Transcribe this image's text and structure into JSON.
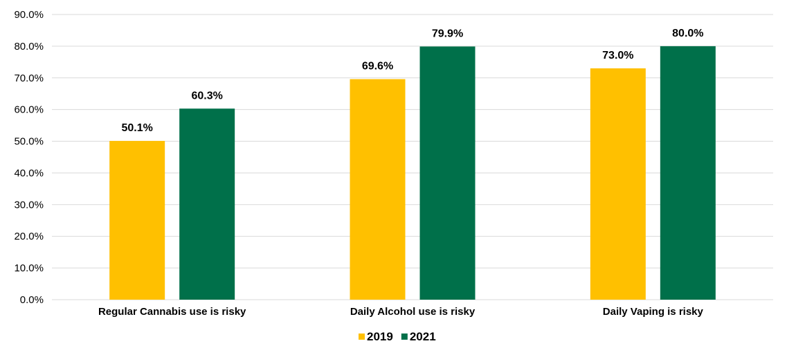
{
  "chart_data": {
    "type": "bar",
    "categories": [
      "Regular Cannabis use is risky",
      "Daily Alcohol use is risky",
      "Daily Vaping is risky"
    ],
    "series": [
      {
        "name": "2019",
        "values": [
          50.1,
          69.6,
          73.0
        ],
        "color": "#FFC000"
      },
      {
        "name": "2021",
        "values": [
          60.3,
          79.9,
          80.0
        ],
        "color": "#00704A"
      }
    ],
    "data_labels": [
      [
        "50.1%",
        "69.6%",
        "73.0%"
      ],
      [
        "60.3%",
        "79.9%",
        "80.0%"
      ]
    ],
    "y_ticks": [
      "0.0%",
      "10.0%",
      "20.0%",
      "30.0%",
      "40.0%",
      "50.0%",
      "60.0%",
      "70.0%",
      "80.0%",
      "90.0%"
    ],
    "ylim": [
      0,
      90
    ],
    "grid": true,
    "legend_position": "bottom"
  }
}
